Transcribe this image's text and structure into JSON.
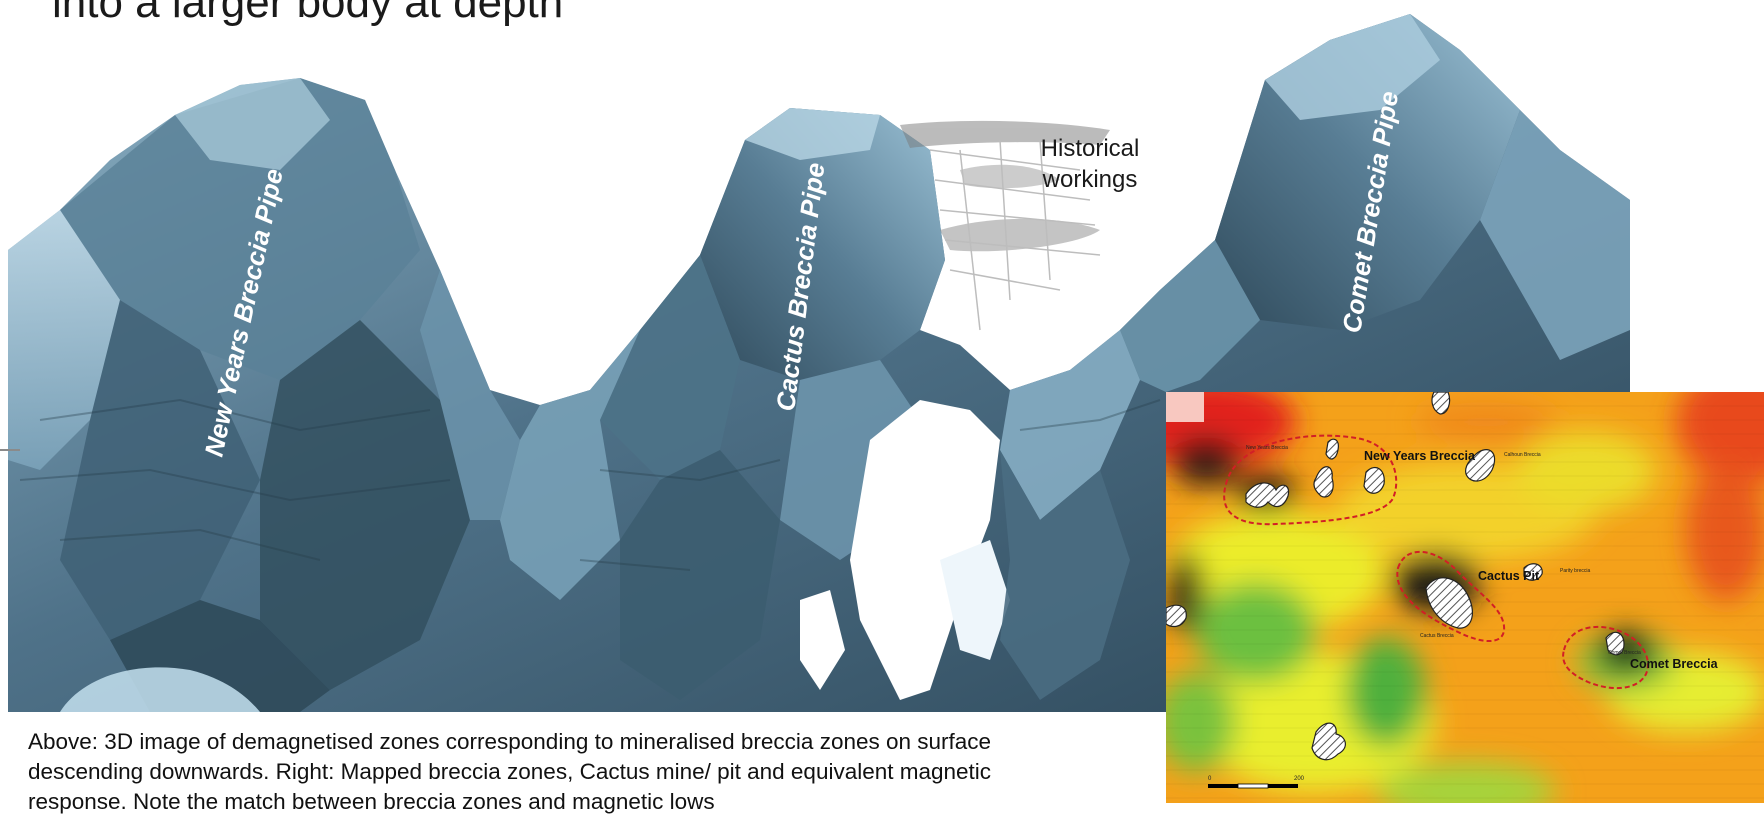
{
  "slide": {
    "title": "into a larger body at depth"
  },
  "render3d": {
    "pipe_labels": [
      "New Years Breccia Pipe",
      "Cactus Breccia Pipe",
      "Comet Breccia Pipe"
    ],
    "historical_label_line1": "Historical",
    "historical_label_line2": "workings"
  },
  "caption": {
    "line1": "Above: 3D image of demagnetised zones corresponding to mineralised breccia zones on surface",
    "line2": "descending downwards. Right: Mapped breccia zones, Cactus mine/ pit and equivalent magnetic",
    "line3": "response. Note the match between breccia zones and magnetic lows"
  },
  "map": {
    "labels": {
      "new_years": "New Years Breccia",
      "cactus_pit": "Cactus Pit",
      "comet": "Comet Breccia",
      "small_new_years": "New Years Breccia",
      "small_calhoun": "Calhoun Breccia",
      "small_cactus": "Cactus Breccia",
      "small_parity": "Parity breccia",
      "small_comet": "Comet Breccia"
    },
    "scale": {
      "start": "0",
      "end": "200"
    },
    "colors": {
      "high": "#e2231a",
      "mid": "#f6b814",
      "low_yellow": "#e9ee2e",
      "low_green": "#54b43c",
      "deep_low": "#1d1f12",
      "boundary": "#d21f26"
    }
  }
}
